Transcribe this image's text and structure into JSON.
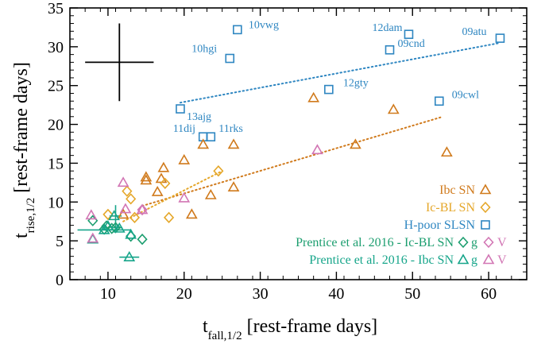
{
  "colors": {
    "ibc": "#d07a1c",
    "icbl": "#e5a72a",
    "slsn": "#2e86c1",
    "prentice_icbl_g": "#1c9e6f",
    "prentice_ibc_g": "#16a58a",
    "prentice_v": "#d276b4",
    "axis": "#000000"
  },
  "chart_data": {
    "type": "scatter",
    "xlabel_main": "t",
    "xlabel_sub": "fall,1/2",
    "xlabel_rest": " [rest-frame days]",
    "ylabel_main": "t",
    "ylabel_sub": "rise,1/2",
    "ylabel_rest": " [rest-frame days]",
    "xlim": [
      5,
      65
    ],
    "ylim": [
      0,
      35
    ],
    "xticks": [
      10,
      20,
      30,
      40,
      50,
      60
    ],
    "yticks": [
      0,
      5,
      10,
      15,
      20,
      25,
      30,
      35
    ],
    "error_cross": {
      "x": 11.5,
      "y": 28,
      "x_err": 4.5,
      "y_err": 5
    },
    "series": [
      {
        "name": "H-poor SLSN",
        "marker": "square",
        "color_key": "slsn",
        "points": [
          {
            "x": 19.5,
            "y": 22.0,
            "label": "13ajg"
          },
          {
            "x": 26.0,
            "y": 28.5,
            "label": "10hgi"
          },
          {
            "x": 27.0,
            "y": 32.2,
            "label": "10vwg"
          },
          {
            "x": 22.5,
            "y": 18.4,
            "label": "11dij"
          },
          {
            "x": 23.5,
            "y": 18.4,
            "label": "11rks"
          },
          {
            "x": 39.0,
            "y": 24.5,
            "label": "12gty"
          },
          {
            "x": 47.0,
            "y": 29.6,
            "label": "09cnd"
          },
          {
            "x": 49.5,
            "y": 31.6,
            "label": "12dam"
          },
          {
            "x": 53.5,
            "y": 23.0,
            "label": "09cwl"
          },
          {
            "x": 61.5,
            "y": 31.1,
            "label": "09atu"
          }
        ]
      },
      {
        "name": "Ibc SN",
        "marker": "triangle",
        "color_key": "ibc",
        "points": [
          {
            "x": 12.0,
            "y": 8.4
          },
          {
            "x": 15.0,
            "y": 13.2
          },
          {
            "x": 15.0,
            "y": 12.8
          },
          {
            "x": 16.5,
            "y": 11.3
          },
          {
            "x": 17.0,
            "y": 13.0
          },
          {
            "x": 17.3,
            "y": 14.4
          },
          {
            "x": 20.0,
            "y": 15.4
          },
          {
            "x": 21.0,
            "y": 8.4
          },
          {
            "x": 22.5,
            "y": 17.4
          },
          {
            "x": 23.5,
            "y": 10.9
          },
          {
            "x": 26.5,
            "y": 17.4
          },
          {
            "x": 26.5,
            "y": 11.9
          },
          {
            "x": 37.0,
            "y": 23.4
          },
          {
            "x": 42.5,
            "y": 17.4
          },
          {
            "x": 47.5,
            "y": 21.9
          },
          {
            "x": 54.5,
            "y": 16.4
          }
        ]
      },
      {
        "name": "Ic-BL SN",
        "marker": "diamond",
        "color_key": "icbl",
        "points": [
          {
            "x": 10.0,
            "y": 8.4
          },
          {
            "x": 12.5,
            "y": 11.4
          },
          {
            "x": 13.0,
            "y": 10.4
          },
          {
            "x": 13.5,
            "y": 8.0
          },
          {
            "x": 17.5,
            "y": 12.4
          },
          {
            "x": 18.0,
            "y": 8.0
          },
          {
            "x": 24.5,
            "y": 14.0
          }
        ]
      },
      {
        "name": "Prentice et al. 2016 - Ic-BL SN",
        "band_g": "g",
        "band_v": "V",
        "marker": "diamond",
        "color_key": "prentice_icbl_g",
        "color_key_v": "prentice_v",
        "points_g": [
          {
            "x": 8.0,
            "y": 7.6
          },
          {
            "x": 9.5,
            "y": 6.5
          },
          {
            "x": 9.8,
            "y": 6.9
          },
          {
            "x": 10.5,
            "y": 6.6
          },
          {
            "x": 11.0,
            "y": 6.7
          },
          {
            "x": 13.0,
            "y": 5.6
          },
          {
            "x": 14.5,
            "y": 5.2
          }
        ],
        "points_v": [
          {
            "x": 14.5,
            "y": 9.0
          }
        ]
      },
      {
        "name": "Prentice et al. 2016 - Ibc SN",
        "band_g": "g",
        "band_v": "V",
        "marker": "triangle",
        "color_key": "prentice_ibc_g",
        "color_key_v": "prentice_v",
        "points_g": [
          {
            "x": 8.0,
            "y": 5.2
          },
          {
            "x": 9.5,
            "y": 6.4
          },
          {
            "x": 10.0,
            "y": 6.9
          },
          {
            "x": 10.8,
            "y": 8.2
          },
          {
            "x": 11.5,
            "y": 6.6
          },
          {
            "x": 12.8,
            "y": 2.9
          },
          {
            "x": 13.0,
            "y": 5.8
          }
        ],
        "points_v": [
          {
            "x": 7.8,
            "y": 8.3
          },
          {
            "x": 8.0,
            "y": 5.3
          },
          {
            "x": 12.0,
            "y": 12.5
          },
          {
            "x": 12.3,
            "y": 9.1
          },
          {
            "x": 14.5,
            "y": 9.0
          },
          {
            "x": 20.0,
            "y": 10.5
          },
          {
            "x": 37.5,
            "y": 16.7
          }
        ]
      }
    ],
    "errorbars": [
      {
        "x": 9.5,
        "y": 6.4,
        "x_err": 3.5,
        "y_err": 0
      },
      {
        "x": 11.0,
        "y": 8.2,
        "x_err": 0.8,
        "y_err": 1.4
      },
      {
        "x": 12.8,
        "y": 2.9,
        "x_err": 1.3,
        "y_err": 0
      },
      {
        "x": 11.2,
        "y": 6.7,
        "x_err": 0.7,
        "y_err": 0.3
      }
    ],
    "fits": [
      {
        "series": "H-poor SLSN",
        "color_key": "slsn",
        "from": [
          19.5,
          22.8
        ],
        "to": [
          61.5,
          30.5
        ]
      },
      {
        "series": "Ibc SN",
        "color_key": "ibc",
        "from": [
          14.5,
          9.5
        ],
        "to": [
          54.0,
          21.0
        ]
      },
      {
        "series": "Ic-BL SN",
        "color_key": "icbl",
        "from": [
          12.0,
          7.5
        ],
        "to": [
          25.0,
          14.0
        ]
      }
    ],
    "legend": {
      "placement": "bottom-right"
    }
  }
}
